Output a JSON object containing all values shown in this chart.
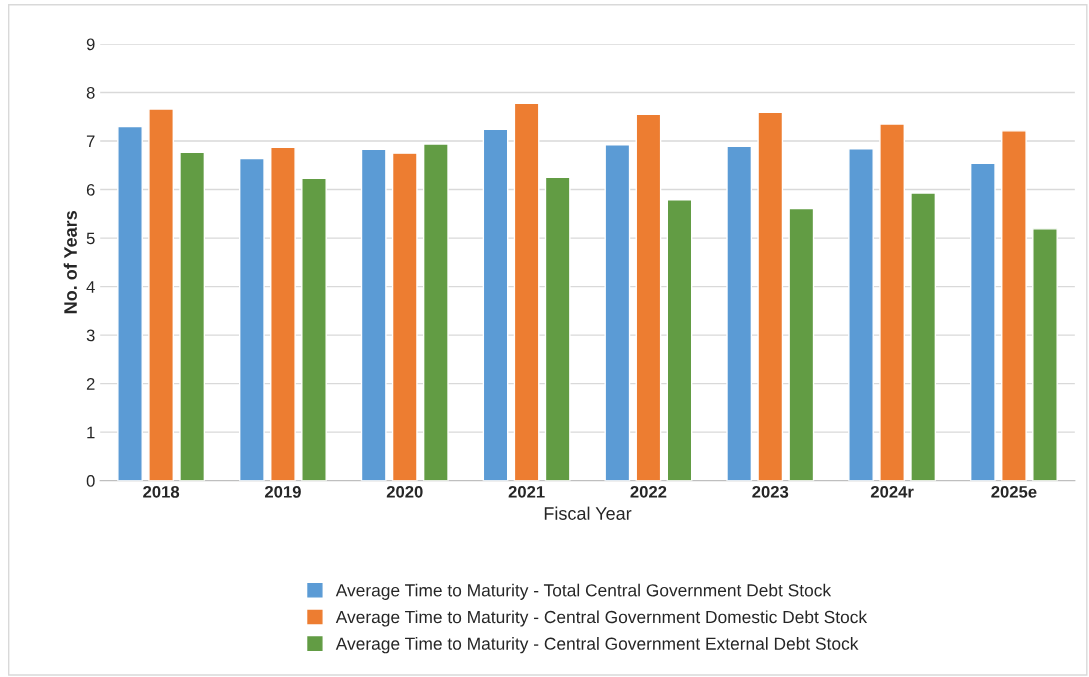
{
  "chart_data": {
    "type": "bar",
    "xlabel": "Fiscal Year",
    "ylabel": "No. of Years",
    "categories": [
      "2018",
      "2019",
      "2020",
      "2021",
      "2022",
      "2023",
      "2024r",
      "2025e"
    ],
    "series": [
      {
        "name": "Average Time to Maturity - Total Central Government Debt Stock",
        "color": "#5b9bd5",
        "values": [
          7.3,
          6.64,
          6.83,
          7.24,
          6.92,
          6.89,
          6.84,
          6.54
        ]
      },
      {
        "name": "Average Time to Maturity - Central Government Domestic Debt Stock",
        "color": "#ed7d31",
        "values": [
          7.66,
          6.87,
          6.75,
          7.78,
          7.55,
          7.59,
          7.35,
          7.21
        ]
      },
      {
        "name": "Average Time to Maturity - Central Government External Debt Stock",
        "color": "#629c44",
        "values": [
          6.77,
          6.23,
          6.94,
          6.25,
          5.79,
          5.61,
          5.93,
          5.19
        ]
      }
    ],
    "ylim": [
      0,
      9
    ],
    "yticks": [
      0,
      1,
      2,
      3,
      4,
      5,
      6,
      7,
      8,
      9
    ],
    "grid": "y",
    "legend": "bottom"
  }
}
